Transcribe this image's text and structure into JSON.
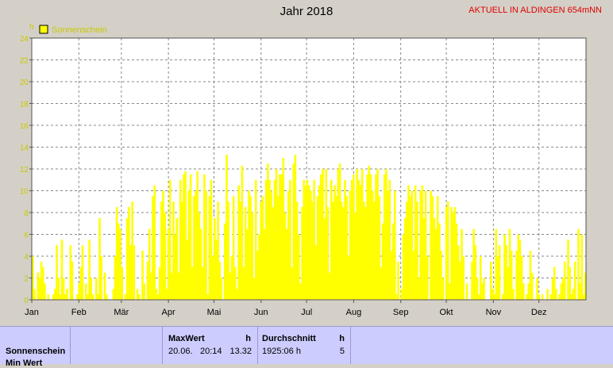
{
  "header": {
    "title": "Jahr 2018",
    "subtitle": "AKTUELL IN ALDINGEN 654mNN"
  },
  "colors": {
    "series": "#ffff00",
    "label": "#c8c800",
    "subtitle": "#e00000",
    "panel": "#ccccff"
  },
  "chart_data": {
    "type": "bar",
    "yunit": "h",
    "ylim": [
      0,
      24
    ],
    "yticks": [
      "0",
      "2",
      "4",
      "6",
      "8",
      "10",
      "12",
      "14",
      "16",
      "18",
      "20",
      "22",
      "24"
    ],
    "months": [
      "Jan",
      "Feb",
      "Mär",
      "Apr",
      "Mai",
      "Jun",
      "Jul",
      "Aug",
      "Sep",
      "Okt",
      "Nov",
      "Dez"
    ],
    "month_days": [
      31,
      28,
      31,
      30,
      31,
      30,
      31,
      31,
      30,
      31,
      30,
      31
    ],
    "grid": true,
    "legend": "top-left",
    "series": [
      {
        "name": "Sonnenschein",
        "color": "#ffff00",
        "values": [
          4.0,
          1.0,
          0.0,
          2.5,
          2.0,
          3.5,
          3.0,
          1.5,
          0.0,
          0.5,
          0.0,
          0.0,
          0.5,
          1.0,
          5.0,
          2.0,
          0.5,
          5.5,
          2.0,
          0.5,
          1.0,
          0.0,
          5.0,
          3.5,
          0.0,
          0.0,
          0.5,
          1.5,
          3.0,
          5.0,
          0.0,
          1.5,
          0.5,
          5.5,
          2.0,
          0.5,
          0.0,
          2.0,
          0.5,
          7.5,
          4.0,
          0.0,
          2.5,
          0.5,
          0.0,
          0.0,
          0.0,
          1.0,
          4.0,
          8.5,
          7.0,
          6.5,
          3.0,
          0.0,
          0.5,
          7.5,
          8.5,
          5.0,
          9.0,
          5.0,
          0.0,
          1.0,
          0.5,
          0.0,
          4.5,
          1.5,
          0.0,
          3.5,
          6.5,
          2.5,
          9.5,
          10.5,
          1.0,
          0.5,
          3.0,
          9.0,
          10.0,
          8.0,
          1.0,
          6.5,
          11.0,
          2.5,
          9.0,
          6.0,
          7.5,
          2.5,
          11.0,
          9.0,
          11.5,
          11.8,
          5.5,
          10.0,
          11.5,
          3.0,
          9.5,
          10.0,
          11.8,
          8.0,
          6.5,
          3.0,
          11.5,
          10.0,
          0.5,
          9.5,
          11.0,
          4.0,
          7.5,
          5.5,
          9.0,
          3.5,
          2.0,
          0.0,
          7.0,
          13.3,
          9.0,
          2.5,
          4.0,
          9.5,
          3.0,
          1.0,
          10.5,
          9.0,
          12.3,
          3.0,
          8.5,
          6.5,
          10.0,
          9.5,
          8.0,
          2.0,
          11.0,
          4.5,
          6.0,
          9.0,
          9.5,
          6.5,
          11.0,
          12.5,
          11.0,
          10.0,
          8.5,
          11.0,
          12.0,
          9.5,
          11.5,
          11.5,
          13.0,
          8.0,
          6.5,
          10.0,
          11.0,
          3.0,
          12.5,
          13.3,
          9.0,
          6.0,
          1.5,
          8.5,
          11.0,
          10.5,
          11.0,
          10.5,
          10.0,
          9.0,
          11.0,
          5.0,
          9.5,
          10.5,
          11.5,
          12.0,
          7.5,
          12.0,
          8.5,
          2.5,
          11.0,
          9.0,
          10.5,
          9.5,
          12.0,
          12.5,
          9.0,
          8.5,
          11.0,
          9.5,
          4.0,
          10.0,
          11.0,
          11.5,
          8.0,
          12.0,
          11.0,
          10.5,
          12.0,
          9.0,
          8.5,
          11.5,
          12.3,
          11.5,
          10.0,
          9.0,
          11.5,
          12.0,
          9.5,
          3.0,
          7.0,
          11.5,
          12.0,
          10.0,
          11.0,
          4.5,
          7.0,
          10.0,
          0.5,
          3.5,
          0.0,
          1.0,
          6.0,
          7.5,
          9.0,
          10.5,
          9.5,
          10.0,
          4.5,
          10.5,
          9.0,
          2.0,
          10.0,
          10.5,
          7.5,
          10.0,
          4.0,
          0.0,
          10.0,
          9.5,
          7.5,
          6.5,
          9.5,
          7.0,
          4.5,
          2.0,
          0.0,
          8.5,
          9.0,
          1.5,
          8.5,
          8.0,
          8.5,
          7.0,
          5.0,
          3.5,
          6.5,
          4.0,
          0.0,
          1.5,
          0.0,
          0.0,
          3.5,
          6.5,
          5.0,
          2.0,
          0.5,
          4.0,
          1.5,
          2.0,
          0.0,
          0.0,
          0.0,
          3.5,
          1.0,
          0.5,
          6.5,
          4.0,
          5.0,
          0.0,
          0.5,
          6.0,
          5.0,
          3.0,
          6.5,
          4.5,
          1.0,
          0.0,
          4.5,
          6.0,
          5.5,
          4.0,
          1.5,
          0.0,
          0.5,
          1.5,
          4.5,
          2.5,
          0.0,
          0.0,
          2.0,
          0.5,
          0.0,
          0.5,
          0.0,
          0.0,
          1.0,
          0.0,
          0.5,
          2.0,
          3.0,
          1.0,
          0.0,
          0.5,
          1.5,
          2.0,
          3.5,
          0.0,
          5.5,
          3.0,
          0.5,
          1.0,
          3.5,
          0.0,
          6.5,
          1.5,
          6.0,
          0.5,
          2.5
        ]
      }
    ]
  },
  "table": {
    "row_label": "Sonnenschein",
    "row_label_2": "Min Wert",
    "max": {
      "header": "MaxWert",
      "unit": "h",
      "date": "20.06.",
      "time": "20:14",
      "value": "13.32"
    },
    "avg": {
      "header": "Durchschnitt",
      "unit": "h",
      "total": "1925:06 h",
      "value": "5"
    }
  }
}
